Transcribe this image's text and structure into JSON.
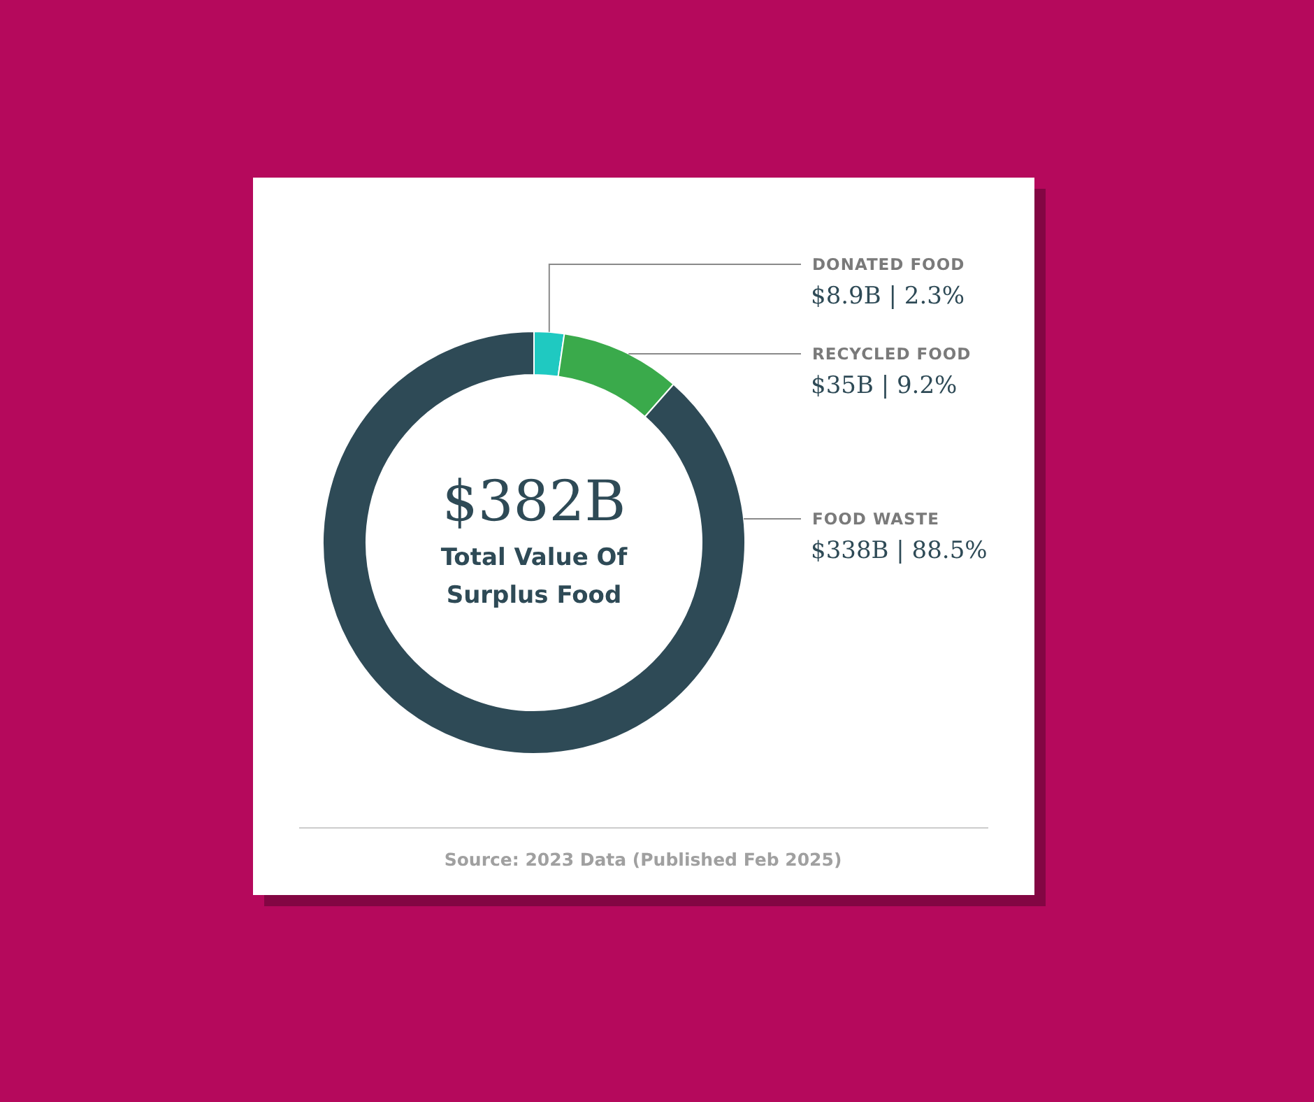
{
  "chart_data": {
    "type": "donut",
    "categories": [
      "DONATED FOOD",
      "RECYCLED FOOD",
      "FOOD WASTE"
    ],
    "values": [
      2.3,
      9.2,
      88.5
    ],
    "colors": [
      "#1fc9c1",
      "#3aaa4b",
      "#2e4a56"
    ],
    "value_labels": [
      "$8.9B | 2.3%",
      "$35B | 9.2%",
      "$338B | 88.5%"
    ],
    "annotations": [
      "$382B",
      "Total Value Of Surplus Food",
      "Source: 2023 Data (Published Feb 2025)"
    ]
  }
}
